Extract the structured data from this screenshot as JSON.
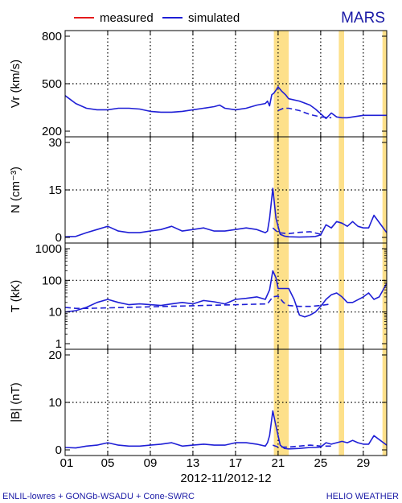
{
  "title": "MARS",
  "footer_left": "ENLIL-lowres + GONGb-WSADU + Cone-SWRC",
  "footer_right": "HELIO  WEATHER",
  "colors": {
    "measured": "#e41a1c",
    "simulated": "#1f1fd6",
    "highlight": "#fde08a"
  },
  "chart_data": {
    "type": "line",
    "title": "MARS",
    "xlabel": "2012-11/2012-12",
    "x_ticks": [
      "01",
      "05",
      "09",
      "13",
      "17",
      "21",
      "25",
      "29"
    ],
    "x_tick_positions": [
      1,
      5,
      9,
      13,
      17,
      21,
      25,
      29
    ],
    "xlim": [
      1,
      31.2
    ],
    "legend": {
      "placement": "top-left",
      "entries": [
        "measured",
        "simulated"
      ]
    },
    "highlight_bands": [
      [
        20.6,
        22.0
      ],
      [
        26.7,
        27.2
      ],
      [
        30.8,
        31.2
      ]
    ],
    "panels": [
      {
        "ylabel": "Vr (km/s)",
        "scale": "linear",
        "ylim": [
          200,
          800
        ],
        "y_ticks": [
          200,
          500,
          800
        ],
        "y_tick_labels": [
          "200",
          "500",
          "800"
        ],
        "gridlines": [
          500
        ],
        "series": [
          {
            "name": "simulated",
            "style": "solid",
            "x": [
              1,
              1.5,
              2,
              3,
              4,
              5,
              6,
              7,
              8,
              9,
              10,
              11,
              12,
              13,
              14,
              15,
              15.5,
              16,
              17,
              18,
              19,
              19.8,
              20.0,
              20.2,
              20.4,
              20.6,
              20.8,
              21.0,
              21.3,
              21.7,
              22,
              23,
              24,
              24.5,
              25,
              25.5,
              26,
              26.5,
              27,
              27.5,
              28,
              29,
              29.5,
              30,
              31.2
            ],
            "values": [
              425,
              400,
              375,
              345,
              335,
              335,
              345,
              345,
              340,
              325,
              320,
              320,
              325,
              335,
              345,
              355,
              365,
              345,
              335,
              345,
              365,
              375,
              390,
              360,
              430,
              440,
              460,
              480,
              455,
              430,
              405,
              390,
              365,
              340,
              310,
              280,
              315,
              290,
              285,
              285,
              290,
              300,
              300,
              300,
              300
            ]
          },
          {
            "name": "simulated (unperturbed)",
            "style": "dashed",
            "x": [
              21.0,
              21.5,
              22,
              23,
              24,
              25,
              26
            ],
            "values": [
              330,
              345,
              345,
              330,
              305,
              290,
              285
            ]
          }
        ]
      },
      {
        "ylabel": "N (cm⁻³)",
        "scale": "linear",
        "ylim": [
          0,
          30
        ],
        "y_ticks": [
          0,
          15,
          30
        ],
        "y_tick_labels": [
          "0",
          "15",
          "30"
        ],
        "gridlines": [
          15
        ],
        "series": [
          {
            "name": "simulated",
            "style": "solid",
            "x": [
              1,
              2,
              3,
              4,
              5,
              6,
              7,
              8,
              9,
              10,
              11,
              12,
              13,
              14,
              15,
              16,
              17,
              18,
              19,
              19.8,
              20.0,
              20.2,
              20.5,
              20.8,
              21.2,
              21.6,
              22,
              23,
              24,
              24.5,
              25,
              25.5,
              26,
              26.5,
              27,
              27.5,
              28,
              28.5,
              29,
              29.5,
              30,
              31.2
            ],
            "values": [
              0.2,
              0.3,
              1.5,
              2.5,
              3.5,
              2.0,
              1.5,
              1.5,
              2.0,
              2.5,
              3.5,
              2.0,
              2.5,
              3.0,
              2.0,
              2.0,
              2.5,
              3.0,
              2.5,
              1.5,
              2.0,
              6.0,
              15.5,
              6.0,
              1.0,
              0.4,
              0.2,
              0.1,
              0.2,
              0.3,
              0.8,
              4.0,
              3.0,
              5.0,
              4.5,
              3.5,
              5.0,
              3.5,
              3.0,
              3.0,
              7.0,
              1.5
            ]
          },
          {
            "name": "simulated (unperturbed)",
            "style": "dashed",
            "x": [
              20.5,
              21.0,
              22,
              23,
              24,
              25
            ],
            "values": [
              3.0,
              1.5,
              1.2,
              1.6,
              1.8,
              1.0
            ]
          }
        ]
      },
      {
        "ylabel": "T (kK)",
        "scale": "log",
        "ylim": [
          1,
          1000
        ],
        "y_ticks": [
          1,
          10,
          100,
          1000
        ],
        "y_tick_labels": [
          "1",
          "10",
          "100",
          "1000"
        ],
        "gridlines": [
          10,
          100
        ],
        "series": [
          {
            "name": "simulated",
            "style": "solid",
            "x": [
              1,
              2,
              3,
              4,
              5,
              6,
              7,
              8,
              9,
              10,
              11,
              12,
              13,
              14,
              15,
              16,
              17,
              18,
              19,
              19.8,
              20.2,
              20.5,
              20.8,
              21.0,
              21.3,
              22,
              22.5,
              23,
              23.5,
              24,
              24.5,
              25,
              25.5,
              26,
              26.5,
              27,
              27.5,
              28,
              29,
              29.5,
              30,
              30.5,
              31.2
            ],
            "values": [
              10,
              11,
              14,
              20,
              25,
              20,
              17,
              18,
              17,
              16,
              18,
              20,
              18,
              23,
              21,
              18,
              25,
              27,
              30,
              25,
              50,
              200,
              120,
              55,
              55,
              55,
              25,
              8,
              7,
              8,
              10,
              15,
              25,
              35,
              40,
              30,
              20,
              20,
              30,
              40,
              25,
              30,
              80
            ]
          },
          {
            "name": "simulated (unperturbed)",
            "style": "dashed",
            "x": [
              1,
              2,
              3,
              20.0,
              20.5,
              21.0,
              21.5,
              22,
              23,
              24,
              25,
              26
            ],
            "values": [
              14,
              13,
              13,
              18,
              30,
              32,
              20,
              16,
              15,
              15,
              16,
              18
            ]
          }
        ]
      },
      {
        "ylabel": "|B| (nT)",
        "scale": "linear",
        "ylim": [
          0,
          20
        ],
        "y_ticks": [
          0,
          10,
          20
        ],
        "y_tick_labels": [
          "0",
          "10",
          "20"
        ],
        "gridlines": [
          10
        ],
        "series": [
          {
            "name": "simulated",
            "style": "solid",
            "x": [
              1,
              2,
              3,
              4,
              5,
              6,
              7,
              8,
              9,
              10,
              11,
              12,
              13,
              14,
              15,
              16,
              17,
              18,
              19,
              19.8,
              20.0,
              20.2,
              20.5,
              20.8,
              21.2,
              21.6,
              22,
              23,
              24,
              24.5,
              25,
              25.5,
              26,
              26.5,
              27,
              27.5,
              28,
              28.5,
              29,
              29.5,
              30,
              31.2
            ],
            "values": [
              0.5,
              0.4,
              0.8,
              1.0,
              1.5,
              1.0,
              0.8,
              0.8,
              1.0,
              1.2,
              1.5,
              0.8,
              1.0,
              1.2,
              1.0,
              1.0,
              1.5,
              1.5,
              1.2,
              0.8,
              1.5,
              3.0,
              8.2,
              5.0,
              1.0,
              0.3,
              0.2,
              0.3,
              0.5,
              0.5,
              0.6,
              1.5,
              1.2,
              1.5,
              1.8,
              1.5,
              2.0,
              1.5,
              1.2,
              1.2,
              3.0,
              1.0
            ]
          },
          {
            "name": "simulated (unperturbed)",
            "style": "dashed",
            "x": [
              20.5,
              21.0,
              22,
              23,
              24,
              25,
              26
            ],
            "values": [
              1.0,
              0.6,
              0.6,
              0.8,
              1.0,
              0.8,
              0.8
            ]
          }
        ]
      }
    ]
  }
}
